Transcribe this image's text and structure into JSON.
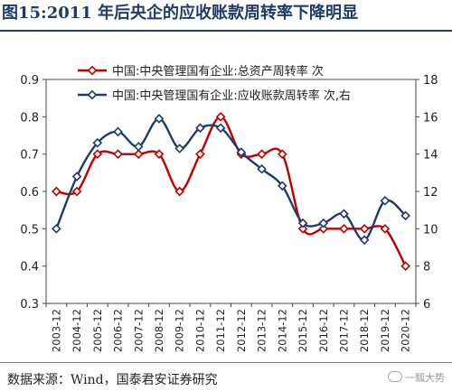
{
  "title": "图15:2011 年后央企的应收账款周转率下降明显",
  "source": "数据来源：Wind，国泰君安证券研究",
  "watermark": "一瓢大势",
  "chart_data": {
    "type": "line",
    "categories": [
      "2003-12",
      "2004-12",
      "2005-12",
      "2006-12",
      "2007-12",
      "2008-12",
      "2009-12",
      "2010-12",
      "2011-12",
      "2012-12",
      "2013-12",
      "2014-12",
      "2015-12",
      "2016-12",
      "2017-12",
      "2018-12",
      "2019-12",
      "2020-12"
    ],
    "series": [
      {
        "name": "中国:中央管理国有企业:总资产周转率 次",
        "axis": "left",
        "color": "#c00000",
        "values": [
          0.6,
          0.6,
          0.7,
          0.7,
          0.7,
          0.7,
          0.6,
          0.7,
          0.8,
          0.7,
          0.7,
          0.7,
          0.5,
          0.5,
          0.5,
          0.5,
          0.5,
          0.4
        ]
      },
      {
        "name": "中国:中央管理国有企业:应收账款周转率 次,右",
        "axis": "right",
        "color": "#1f3b66",
        "values": [
          10.0,
          12.8,
          14.6,
          15.2,
          14.4,
          15.9,
          14.3,
          15.4,
          15.4,
          14.1,
          13.2,
          12.3,
          10.3,
          10.3,
          10.8,
          9.4,
          11.5,
          10.7
        ]
      }
    ],
    "ylim_left": [
      0.3,
      0.9
    ],
    "yticks_left": [
      "0.3",
      "0.4",
      "0.5",
      "0.6",
      "0.7",
      "0.8",
      "0.9"
    ],
    "ylim_right": [
      6,
      18
    ],
    "yticks_right": [
      "6",
      "8",
      "10",
      "12",
      "14",
      "16",
      "18"
    ],
    "legend_position": "top"
  }
}
